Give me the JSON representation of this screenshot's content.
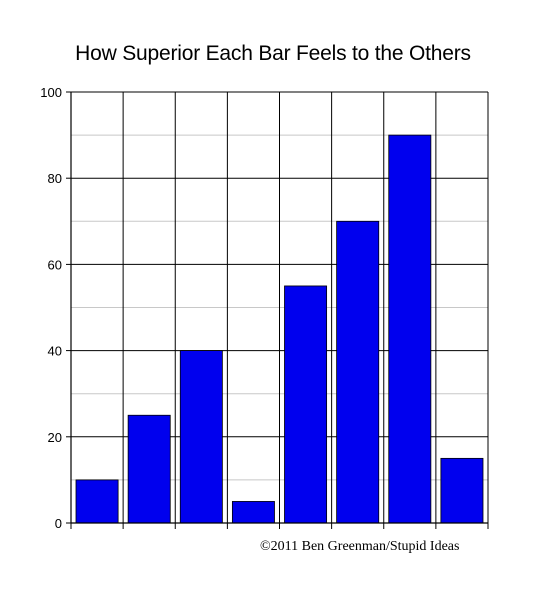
{
  "chart_data": {
    "type": "bar",
    "title": "How Superior Each Bar Feels to the Others",
    "categories": [
      "",
      "",
      "",
      "",
      "",
      "",
      "",
      ""
    ],
    "values": [
      10,
      25,
      40,
      5,
      55,
      70,
      90,
      15
    ],
    "ylim": [
      0,
      100
    ],
    "yticks": [
      0,
      20,
      40,
      60,
      80,
      100
    ],
    "ytick_labels": [
      "0",
      "20",
      "40",
      "60",
      "80",
      "100"
    ],
    "xlabel": "",
    "ylabel": "",
    "grid": true,
    "bar_color": "#0000ee",
    "credit": "©2011 Ben Greenman/Stupid Ideas"
  }
}
